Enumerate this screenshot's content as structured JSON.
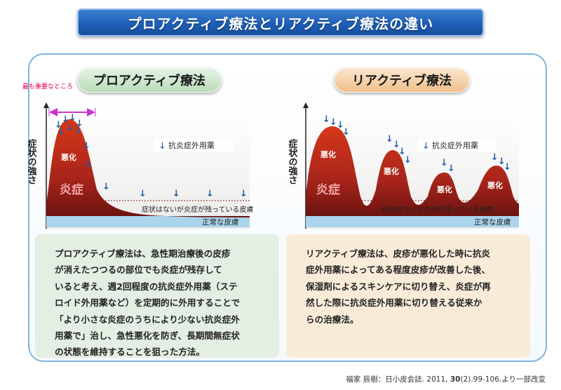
{
  "title": "プロアクティブ療法とリアクティブ療法の違い",
  "note_most_important": "最も重要なところ",
  "y_axis_label": "症状の強さ",
  "left": {
    "heading": "プロアクティブ療法",
    "legend": "抗炎症外用薬",
    "peak_label_worsen": "悪化",
    "big_label": "炎症",
    "residual_label": "症状はないが炎症が残っている皮膚",
    "normal_label": "正常な皮膚",
    "description": "プロアクティブ療法は、急性期治療後の皮疹\nが消えたつつるの部位でも炎症が残存して\nいると考え、週2回程度の抗炎症外用薬（ステ\nロイド外用薬など）を定期的に外用することで\n「より小さな炎症のうちにより少ない抗炎症外\n用薬で」治し、急性悪化を防ぎ、長期間無症状\nの状態を維持することを狙った方法。"
  },
  "right": {
    "heading": "リアクティブ療法",
    "legend": "抗炎症外用薬",
    "peak_labels": [
      "悪化",
      "悪化",
      "悪化",
      "悪化"
    ],
    "big_label": "炎症",
    "residual_label": "症状はないが炎症が残っている皮膚",
    "normal_label": "正常な皮膚",
    "description": "リアクティブ療法は、皮疹が悪化した時に抗炎\n症外用薬によってある程度皮疹が改善した後、\n保湿剤によるスキンケアに切り替え、炎症が再\n然した際に抗炎症外用薬に切り替える従来か\nらの治療法。"
  },
  "citation_prefix": "福家 辰樹：日小皮会誌. 2011, ",
  "citation_volume": "30",
  "citation_suffix": "(2).99-106.より一部改変",
  "colors": {
    "inflammation": "#c0321c",
    "arrow": "#1f5ea8",
    "normal_skin": "#a9d4ec",
    "magenta": "#cc33cc"
  }
}
